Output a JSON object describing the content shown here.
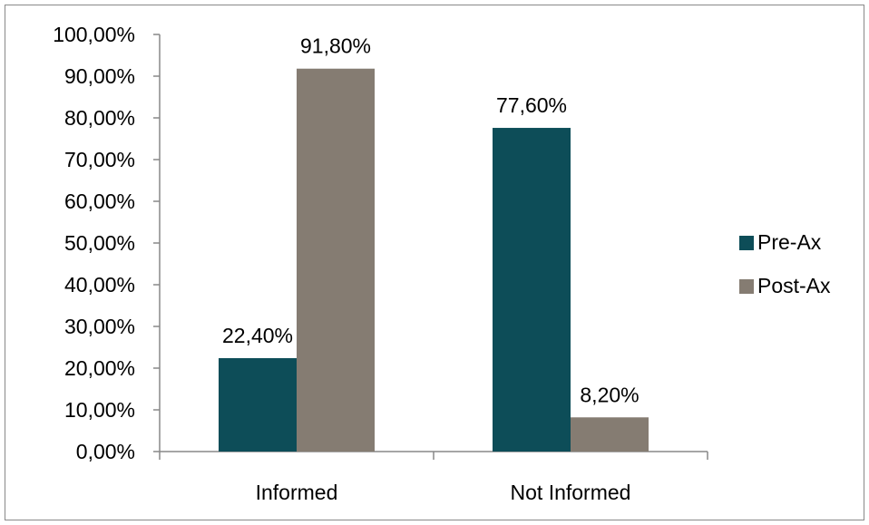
{
  "chart_data": {
    "type": "bar",
    "title": "",
    "xlabel": "",
    "ylabel": "",
    "categories": [
      "Informed",
      "Not Informed"
    ],
    "series": [
      {
        "name": "Pre-Ax",
        "color": "#0d4d58",
        "values": [
          22.4,
          77.6
        ],
        "labels": [
          "22,40%",
          "77,60%"
        ]
      },
      {
        "name": "Post-Ax",
        "color": "#857c72",
        "values": [
          91.8,
          8.2
        ],
        "labels": [
          "91,80%",
          "8,20%"
        ]
      }
    ],
    "ylim": [
      0,
      100
    ],
    "yticks": [
      "0,00%",
      "10,00%",
      "20,00%",
      "30,00%",
      "40,00%",
      "50,00%",
      "60,00%",
      "70,00%",
      "80,00%",
      "90,00%",
      "100,00%"
    ],
    "grid": false,
    "legend_position": "right"
  }
}
